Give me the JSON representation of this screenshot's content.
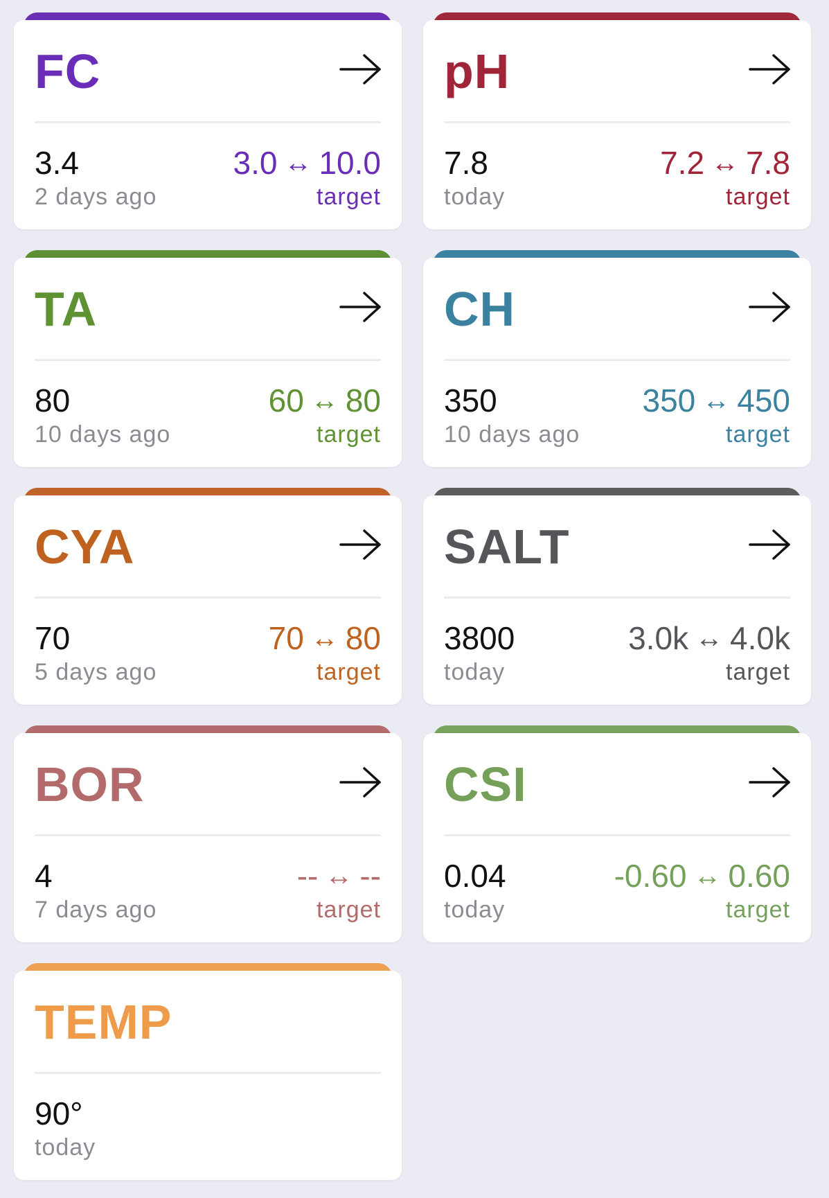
{
  "separator_glyph": "↔",
  "cards": [
    {
      "title": "FC",
      "value": "3.4",
      "age": "2 days ago",
      "low": "3.0",
      "high": "10.0",
      "target_label": "target",
      "color": "#6a2db7",
      "bar_color": "#6b2fb5",
      "has_arrow": true
    },
    {
      "title": "pH",
      "value": "7.8",
      "age": "today",
      "low": "7.2",
      "high": "7.8",
      "target_label": "target",
      "color": "#a12539",
      "bar_color": "#a1273a",
      "has_arrow": true
    },
    {
      "title": "TA",
      "value": "80",
      "age": "10 days ago",
      "low": "60",
      "high": "80",
      "target_label": "target",
      "color": "#5f9233",
      "bar_color": "#5d9134",
      "has_arrow": true
    },
    {
      "title": "CH",
      "value": "350",
      "age": "10 days ago",
      "low": "350",
      "high": "450",
      "target_label": "target",
      "color": "#3b81a0",
      "bar_color": "#3c82a2",
      "has_arrow": true
    },
    {
      "title": "CYA",
      "value": "70",
      "age": "5 days ago",
      "low": "70",
      "high": "80",
      "target_label": "target",
      "color": "#c0621f",
      "bar_color": "#c0632a",
      "has_arrow": true
    },
    {
      "title": "SALT",
      "value": "3800",
      "age": "today",
      "low": "3.0k",
      "high": "4.0k",
      "target_label": "target",
      "color": "#55555a",
      "bar_color": "#5c5c5c",
      "has_arrow": true
    },
    {
      "title": "BOR",
      "value": "4",
      "age": "7 days ago",
      "low": "--",
      "high": "--",
      "target_label": "target",
      "color": "#b26a6a",
      "bar_color": "#b36b6b",
      "has_arrow": true
    },
    {
      "title": "CSI",
      "value": "0.04",
      "age": "today",
      "low": "-0.60",
      "high": "0.60",
      "target_label": "target",
      "color": "#74a05a",
      "bar_color": "#77a35c",
      "has_arrow": true
    },
    {
      "title": "TEMP",
      "value": "90°",
      "age": "today",
      "low": "",
      "high": "",
      "target_label": "",
      "color": "#ee9c4c",
      "bar_color": "#f0a052",
      "has_arrow": false
    }
  ]
}
